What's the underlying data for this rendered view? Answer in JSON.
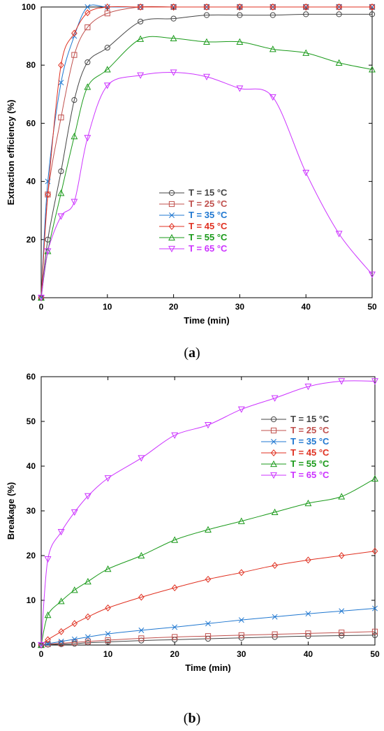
{
  "chart_data": [
    {
      "type": "line",
      "caption_letter": "a",
      "xlabel": "Time (min)",
      "ylabel": "Extraction efficiency (%)",
      "xlim": [
        0,
        50
      ],
      "ylim": [
        0,
        100
      ],
      "xticks": [
        0,
        10,
        20,
        30,
        40,
        50
      ],
      "yticks": [
        0,
        20,
        40,
        60,
        80,
        100
      ],
      "grid": false,
      "legend_position": "center",
      "series": [
        {
          "name": "T = 15 °C",
          "color": "#444444",
          "marker": "circle",
          "x": [
            0,
            1,
            3,
            5,
            7,
            10,
            15,
            20,
            25,
            30,
            35,
            40,
            45,
            50
          ],
          "y": [
            0,
            20,
            43.5,
            68,
            81,
            86,
            95,
            96,
            97.2,
            97.2,
            97.2,
            97.5,
            97.5,
            97.5
          ]
        },
        {
          "name": "T = 25 °C",
          "color": "#c0504d",
          "marker": "square",
          "x": [
            0,
            1,
            3,
            5,
            7,
            10,
            15,
            20,
            25,
            30,
            35,
            40,
            45,
            50
          ],
          "y": [
            0,
            35.5,
            62,
            83.5,
            93,
            97.8,
            100,
            100,
            100,
            100,
            100,
            100,
            100,
            100
          ]
        },
        {
          "name": "T = 35 °C",
          "color": "#1f77d0",
          "marker": "x",
          "x": [
            0,
            1,
            3,
            5,
            7,
            10,
            15,
            20,
            25,
            30,
            35,
            40,
            45,
            50
          ],
          "y": [
            0,
            40,
            74,
            90,
            100,
            100,
            100,
            100,
            100,
            100,
            100,
            100,
            100,
            100
          ]
        },
        {
          "name": "T = 45 °C",
          "color": "#e03020",
          "marker": "diamond",
          "x": [
            0,
            1,
            3,
            5,
            7,
            10,
            15,
            20,
            25,
            30,
            35,
            40,
            45,
            50
          ],
          "y": [
            0,
            35.5,
            80,
            91,
            98,
            100,
            100,
            100,
            100,
            100,
            100,
            100,
            100,
            100
          ]
        },
        {
          "name": "T = 55 °C",
          "color": "#1a9a1a",
          "marker": "triangle-up",
          "x": [
            0,
            1,
            3,
            5,
            7,
            10,
            15,
            20,
            25,
            30,
            35,
            40,
            45,
            50
          ],
          "y": [
            0,
            16,
            36,
            55.5,
            72.5,
            78.5,
            89,
            89.2,
            88,
            88,
            85.5,
            84.2,
            80.8,
            78.5
          ]
        },
        {
          "name": "T = 65 °C",
          "color": "#cc33ff",
          "marker": "triangle-down",
          "x": [
            0,
            1,
            3,
            5,
            7,
            10,
            15,
            20,
            25,
            30,
            35,
            40,
            45,
            50
          ],
          "y": [
            0,
            16,
            28,
            33,
            55,
            73,
            76.5,
            77.5,
            76,
            72,
            69,
            43,
            22,
            8
          ]
        }
      ]
    },
    {
      "type": "line",
      "caption_letter": "b",
      "xlabel": "Time (min)",
      "ylabel": "Breakage (%)",
      "xlim": [
        0,
        50
      ],
      "ylim": [
        0,
        60
      ],
      "xticks": [
        0,
        10,
        20,
        30,
        40,
        50
      ],
      "yticks": [
        0,
        10,
        20,
        30,
        40,
        50,
        60
      ],
      "grid": false,
      "legend_position": "top-right",
      "series": [
        {
          "name": "T = 15 °C",
          "color": "#444444",
          "marker": "circle",
          "x": [
            0,
            1,
            3,
            5,
            7,
            10,
            15,
            20,
            25,
            30,
            35,
            40,
            45,
            50
          ],
          "y": [
            0,
            0.1,
            0.2,
            0.3,
            0.5,
            0.7,
            1.0,
            1.2,
            1.4,
            1.6,
            1.8,
            2.0,
            2.1,
            2.2
          ]
        },
        {
          "name": "T = 25 °C",
          "color": "#c0504d",
          "marker": "square",
          "x": [
            0,
            1,
            3,
            5,
            7,
            10,
            15,
            20,
            25,
            30,
            35,
            40,
            45,
            50
          ],
          "y": [
            0,
            0.2,
            0.4,
            0.6,
            0.8,
            1.1,
            1.5,
            1.8,
            2.0,
            2.2,
            2.4,
            2.6,
            2.8,
            3.0
          ]
        },
        {
          "name": "T = 35 °C",
          "color": "#1f77d0",
          "marker": "x",
          "x": [
            0,
            1,
            3,
            5,
            7,
            10,
            15,
            20,
            25,
            30,
            35,
            40,
            45,
            50
          ],
          "y": [
            0,
            0.3,
            0.8,
            1.3,
            1.8,
            2.5,
            3.3,
            4.0,
            4.8,
            5.6,
            6.3,
            7.0,
            7.6,
            8.2
          ]
        },
        {
          "name": "T = 45 °C",
          "color": "#e03020",
          "marker": "diamond",
          "x": [
            0,
            1,
            3,
            5,
            7,
            10,
            15,
            20,
            25,
            30,
            35,
            40,
            45,
            50
          ],
          "y": [
            0,
            1.2,
            3.0,
            4.8,
            6.3,
            8.3,
            10.7,
            12.8,
            14.7,
            16.2,
            17.8,
            19.0,
            20.0,
            21.0
          ]
        },
        {
          "name": "T = 55 °C",
          "color": "#1a9a1a",
          "marker": "triangle-up",
          "x": [
            0,
            1,
            3,
            5,
            7,
            10,
            15,
            20,
            25,
            30,
            35,
            40,
            45,
            50
          ],
          "y": [
            0,
            6.7,
            9.8,
            12.3,
            14.2,
            17.0,
            20.0,
            23.5,
            25.8,
            27.7,
            29.7,
            31.7,
            33.2,
            37.2
          ]
        },
        {
          "name": "T = 65 °C",
          "color": "#cc33ff",
          "marker": "triangle-down",
          "x": [
            0,
            1,
            3,
            5,
            7,
            10,
            15,
            20,
            25,
            30,
            35,
            40,
            45,
            50
          ],
          "y": [
            0,
            19.2,
            25.3,
            29.7,
            33.3,
            37.3,
            41.8,
            46.9,
            49.2,
            52.7,
            55.2,
            57.8,
            59.0,
            59.0
          ]
        }
      ]
    }
  ]
}
